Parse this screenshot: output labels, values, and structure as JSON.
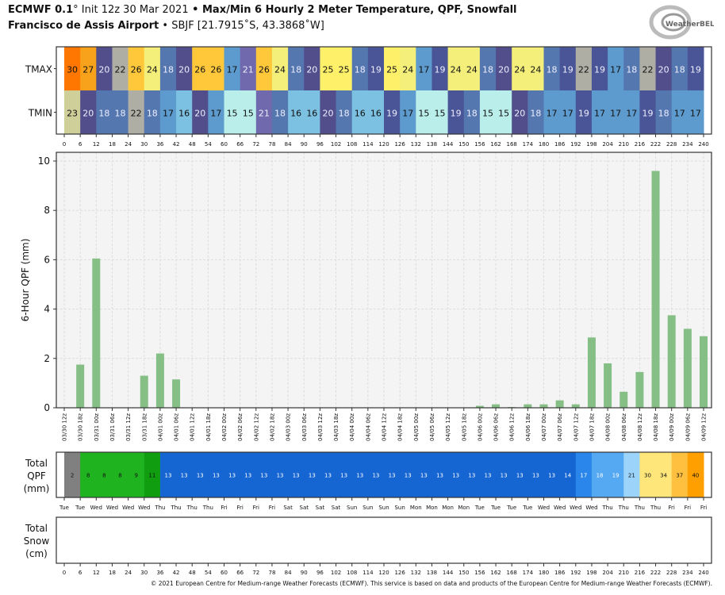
{
  "header": {
    "model": "ECMWF 0.1",
    "deg": "°",
    "init": " Init 12z 30 Mar 2021",
    "sep": " • ",
    "title": "Max/Min 6 Hourly 2 Meter Temperature,  QPF,  Snowfall",
    "station": "Francisco de Assis Airport",
    "station_info": "SBJF [21.7915˚S, 43.3868˚W]"
  },
  "logo_text": "WeatherBELL",
  "footer": "© 2021 European Centre for Medium-range Weather Forecasts (ECMWF). This service is based on data and products of the European Centre for Medium-range Weather Forecasts (ECMWF).",
  "chart_data": [
    {
      "type": "heatmap",
      "rows": [
        "TMAX",
        "TMIN"
      ],
      "x_ticks": [
        0,
        6,
        12,
        18,
        24,
        30,
        36,
        42,
        48,
        54,
        60,
        66,
        72,
        78,
        84,
        90,
        96,
        102,
        108,
        114,
        120,
        126,
        132,
        138,
        144,
        150,
        156,
        162,
        168,
        174,
        180,
        186,
        192,
        198,
        204,
        210,
        216,
        222,
        228,
        234,
        240
      ],
      "TMAX": [
        30,
        27,
        20,
        22,
        26,
        24,
        18,
        20,
        26,
        26,
        17,
        21,
        26,
        24,
        18,
        20,
        25,
        25,
        18,
        19,
        25,
        24,
        17,
        19,
        24,
        24,
        18,
        20,
        24,
        24,
        18,
        19,
        22,
        19,
        17,
        18,
        22,
        20,
        18,
        19
      ],
      "TMIN": [
        23,
        20,
        18,
        18,
        22,
        18,
        17,
        16,
        20,
        17,
        15,
        15,
        21,
        18,
        16,
        16,
        20,
        18,
        16,
        16,
        19,
        17,
        15,
        15,
        19,
        18,
        15,
        15,
        20,
        18,
        17,
        17,
        19,
        17,
        17,
        17,
        19,
        18,
        17,
        17
      ],
      "colors": {
        "15": "#b9eeea",
        "16": "#7cc0e2",
        "17": "#5d9acd",
        "18": "#5577b0",
        "19": "#4a5597",
        "20": "#524e8c",
        "21": "#7169ae",
        "22": "#aeaea4",
        "23": "#cfcf99",
        "24": "#f4ef7a",
        "25": "#fff06a",
        "26": "#fec83a",
        "27": "#f8a11a",
        "30": "#ff7700"
      }
    },
    {
      "type": "bar",
      "ylabel": "6-Hour QPF (mm)",
      "ylim": [
        0,
        10.3
      ],
      "y_ticks": [
        0,
        2,
        4,
        6,
        8,
        10
      ],
      "grid": true,
      "bar_color": "#86bf86",
      "categories": [
        "03/30 12z",
        "03/30 18z",
        "03/31 00z",
        "03/31 06z",
        "03/31 12z",
        "03/31 18z",
        "04/01 00z",
        "04/01 06z",
        "04/01 12z",
        "04/01 18z",
        "04/02 00z",
        "04/02 06z",
        "04/02 12z",
        "04/02 18z",
        "04/03 00z",
        "04/03 06z",
        "04/03 12z",
        "04/03 18z",
        "04/04 00z",
        "04/04 06z",
        "04/04 12z",
        "04/04 18z",
        "04/05 00z",
        "04/05 06z",
        "04/05 12z",
        "04/05 18z",
        "04/06 00z",
        "04/06 06z",
        "04/06 12z",
        "04/06 18z",
        "04/07 00z",
        "04/07 06z",
        "04/07 12z",
        "04/07 18z",
        "04/08 00z",
        "04/08 06z",
        "04/08 12z",
        "04/08 18z",
        "04/09 00z",
        "04/09 06z",
        "04/09 12z"
      ],
      "values": [
        0,
        1.75,
        6.05,
        0,
        0,
        1.3,
        2.2,
        1.15,
        0,
        0,
        0,
        0,
        0,
        0,
        0,
        0,
        0,
        0,
        0,
        0,
        0,
        0,
        0,
        0,
        0,
        0,
        0.08,
        0.14,
        0.03,
        0.14,
        0.14,
        0.3,
        0.14,
        2.85,
        1.8,
        0.65,
        1.45,
        9.6,
        3.75,
        3.2,
        2.9
      ]
    },
    {
      "type": "heatmap",
      "ylabel": [
        "Total",
        "QPF",
        "(mm)"
      ],
      "values": [
        2,
        8,
        8,
        8,
        9,
        11,
        13,
        13,
        13,
        13,
        13,
        13,
        13,
        13,
        13,
        13,
        13,
        13,
        13,
        13,
        13,
        13,
        13,
        13,
        13,
        13,
        13,
        13,
        13,
        13,
        13,
        14,
        17,
        18,
        19,
        21,
        30,
        34,
        37,
        40
      ],
      "x_ticks": [
        "Tue",
        "Tue",
        "Wed",
        "Wed",
        "Wed",
        "Wed",
        "Thu",
        "Thu",
        "Thu",
        "Thu",
        "Fri",
        "Fri",
        "Fri",
        "Fri",
        "Sat",
        "Sat",
        "Sat",
        "Sat",
        "Sun",
        "Sun",
        "Sun",
        "Sun",
        "Mon",
        "Mon",
        "Mon",
        "Mon",
        "Tue",
        "Tue",
        "Tue",
        "Tue",
        "Wed",
        "Wed",
        "Wed",
        "Wed",
        "Thu",
        "Thu",
        "Thu",
        "Thu",
        "Fri",
        "Fri",
        "Fri"
      ],
      "colors": {
        "2": "#808080",
        "8": "#20b320",
        "9": "#20b320",
        "11": "#109e10",
        "13": "#1565d2",
        "14": "#1565d2",
        "17": "#2a86ea",
        "18": "#55a8f2",
        "19": "#55a8f2",
        "21": "#9cd3fa",
        "30": "#ffe67a",
        "34": "#ffe67a",
        "37": "#ffc040",
        "40": "#ffa000"
      }
    },
    {
      "type": "heatmap",
      "ylabel": [
        "Total",
        "Snow",
        "(cm)"
      ],
      "values": [],
      "x_ticks": [
        0,
        6,
        12,
        18,
        24,
        30,
        36,
        42,
        48,
        54,
        60,
        66,
        72,
        78,
        84,
        90,
        96,
        102,
        108,
        114,
        120,
        126,
        132,
        138,
        144,
        150,
        156,
        162,
        168,
        174,
        180,
        186,
        192,
        198,
        204,
        210,
        216,
        222,
        228,
        234,
        240
      ]
    }
  ]
}
